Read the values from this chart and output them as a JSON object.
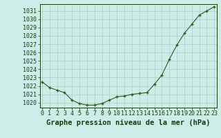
{
  "x": [
    0,
    1,
    2,
    3,
    4,
    5,
    6,
    7,
    8,
    9,
    10,
    11,
    12,
    13,
    14,
    15,
    16,
    17,
    18,
    19,
    20,
    21,
    22,
    23
  ],
  "y": [
    1022.5,
    1021.8,
    1021.5,
    1021.2,
    1020.3,
    1019.9,
    1019.7,
    1019.7,
    1019.9,
    1020.3,
    1020.7,
    1020.8,
    1021.0,
    1021.1,
    1021.2,
    1022.2,
    1023.3,
    1025.2,
    1026.9,
    1028.3,
    1029.4,
    1030.5,
    1031.0,
    1031.5
  ],
  "line_color": "#2d5a1b",
  "marker_color": "#2d5a1b",
  "bg_color": "#cceee8",
  "grid_color": "#aacccc",
  "title": "Graphe pression niveau de la mer (hPa)",
  "title_color": "#1a3a0a",
  "title_fontsize": 7.5,
  "tick_color": "#1a3a0a",
  "tick_fontsize": 6.0,
  "ylim": [
    1019.4,
    1031.8
  ],
  "yticks": [
    1020,
    1021,
    1022,
    1023,
    1024,
    1025,
    1026,
    1027,
    1028,
    1029,
    1030,
    1031
  ],
  "xticks": [
    0,
    1,
    2,
    3,
    4,
    5,
    6,
    7,
    8,
    9,
    10,
    11,
    12,
    13,
    14,
    15,
    16,
    17,
    18,
    19,
    20,
    21,
    22,
    23
  ],
  "xtick_labels": [
    "0",
    "1",
    "2",
    "3",
    "4",
    "5",
    "6",
    "7",
    "8",
    "9",
    "10",
    "11",
    "12",
    "13",
    "14",
    "15",
    "16",
    "17",
    "18",
    "19",
    "20",
    "21",
    "22",
    "23"
  ]
}
